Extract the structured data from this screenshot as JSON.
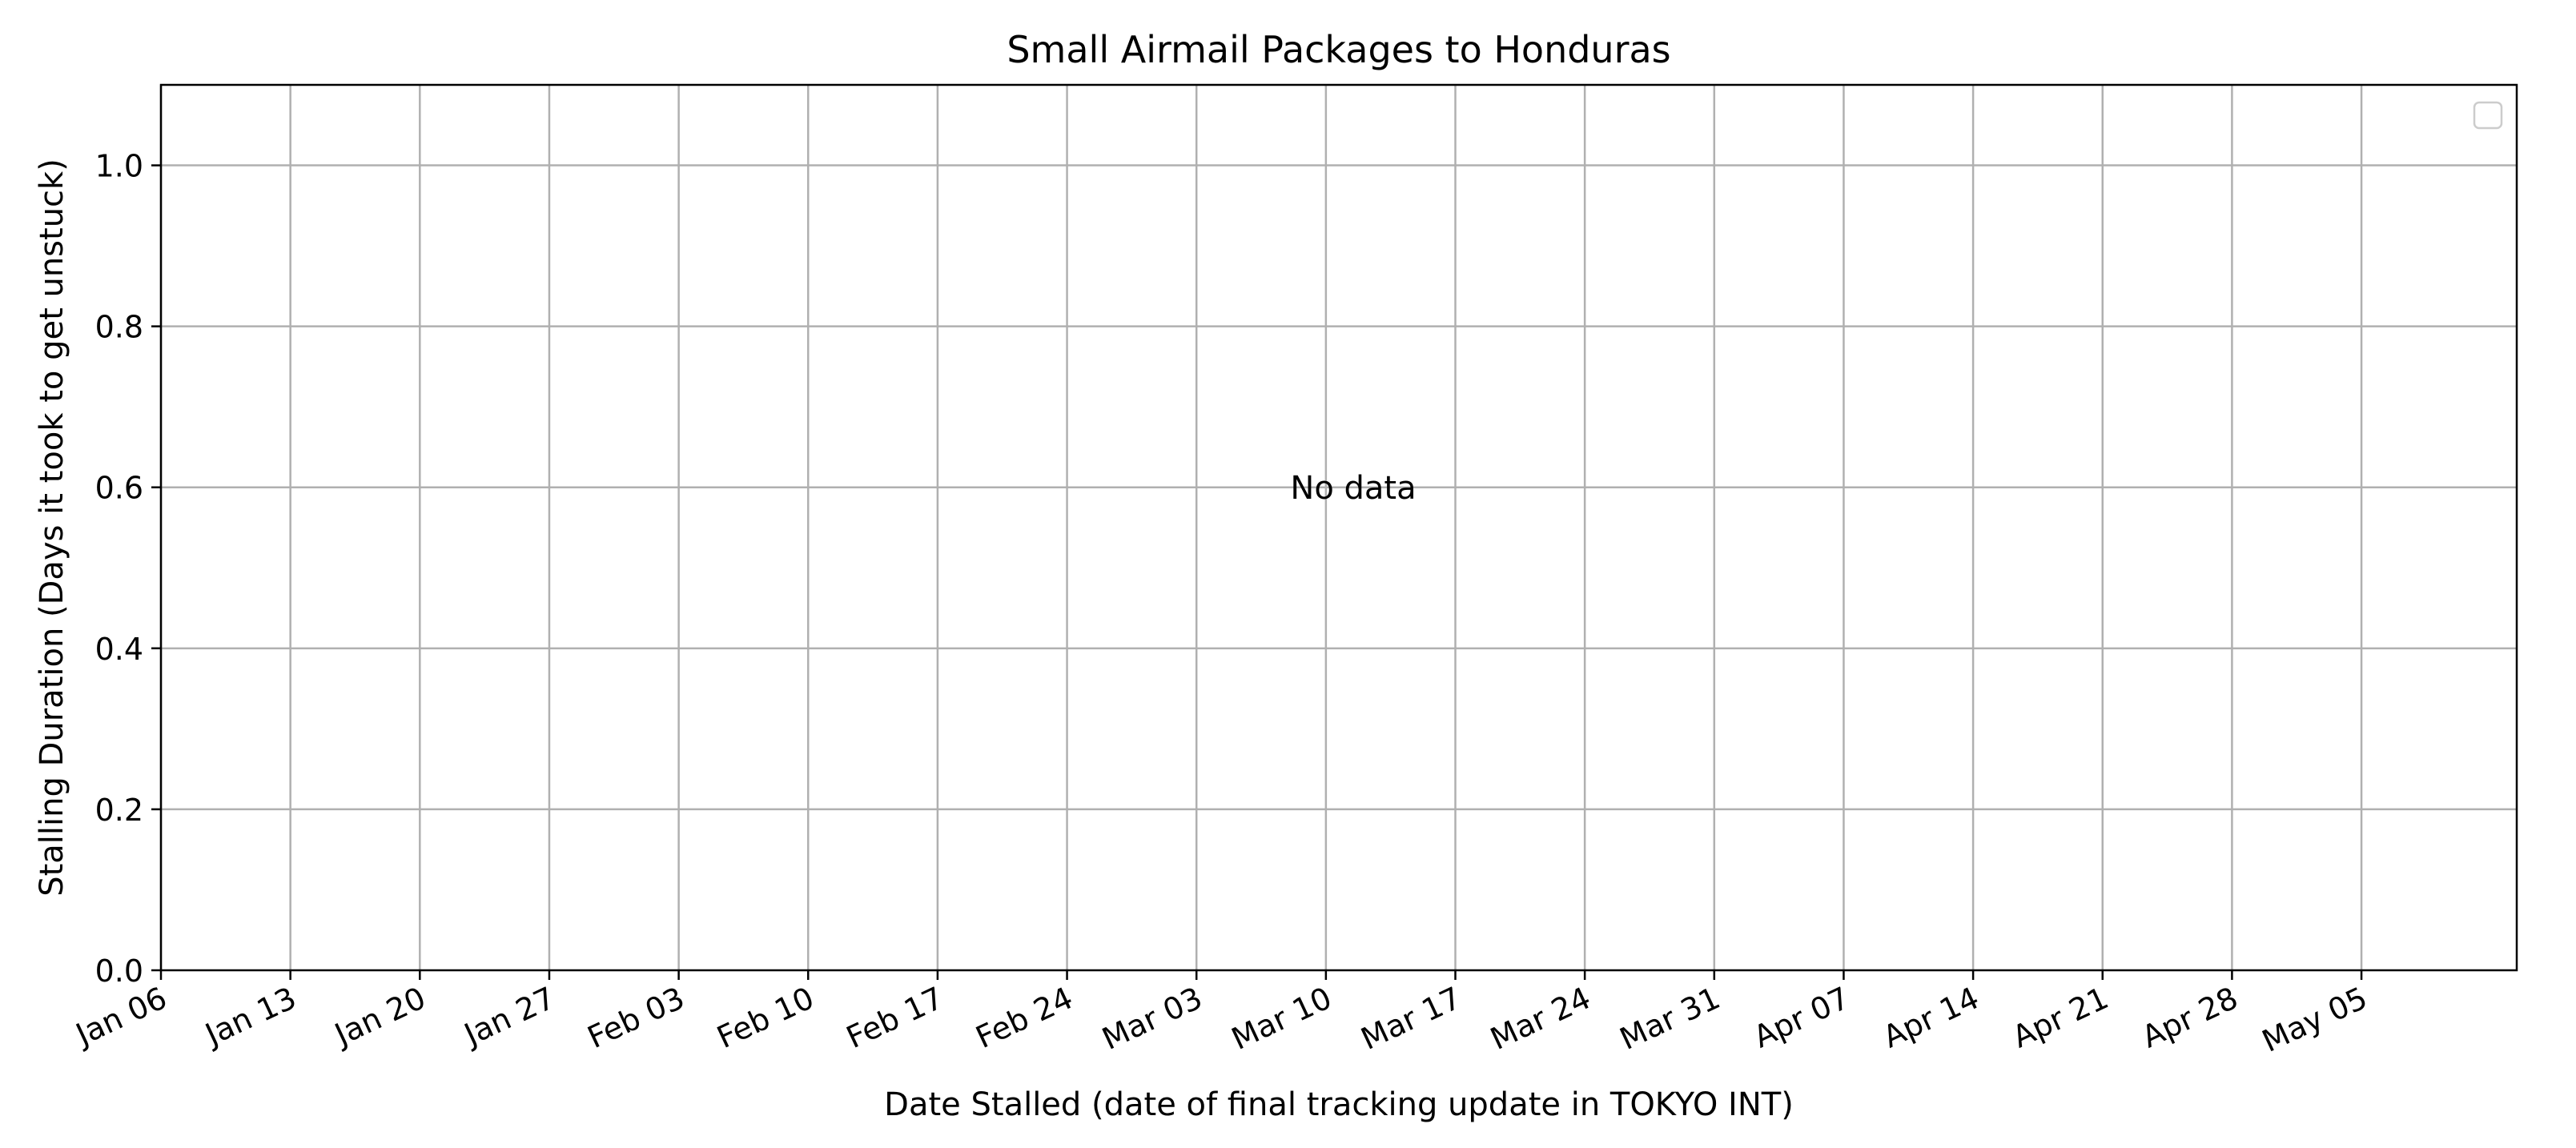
{
  "chart_data": {
    "type": "scatter",
    "title": "Small Airmail Packages to Honduras",
    "xlabel": "Date Stalled (date of final tracking update in TOKYO INT)",
    "ylabel": "Stalling Duration (Days it took to get unstuck)",
    "x_tick_labels": [
      "Jan 06",
      "Jan 13",
      "Jan 20",
      "Jan 27",
      "Feb 03",
      "Feb 10",
      "Feb 17",
      "Feb 24",
      "Mar 03",
      "Mar 10",
      "Mar 17",
      "Mar 24",
      "Mar 31",
      "Apr 07",
      "Apr 14",
      "Apr 21",
      "Apr 28",
      "May 05"
    ],
    "y_tick_labels": [
      "0.0",
      "0.2",
      "0.4",
      "0.6",
      "0.8",
      "1.0"
    ],
    "y_ticks": [
      0.0,
      0.2,
      0.4,
      0.6,
      0.8,
      1.0
    ],
    "ylim": [
      0,
      1.1
    ],
    "series": [],
    "annotation": "No data",
    "grid": true,
    "legend_position": "upper right",
    "colors": {
      "grid": "#b0b0b0",
      "axes": "#000000",
      "background": "#ffffff",
      "legend_border": "#cccccc"
    }
  }
}
